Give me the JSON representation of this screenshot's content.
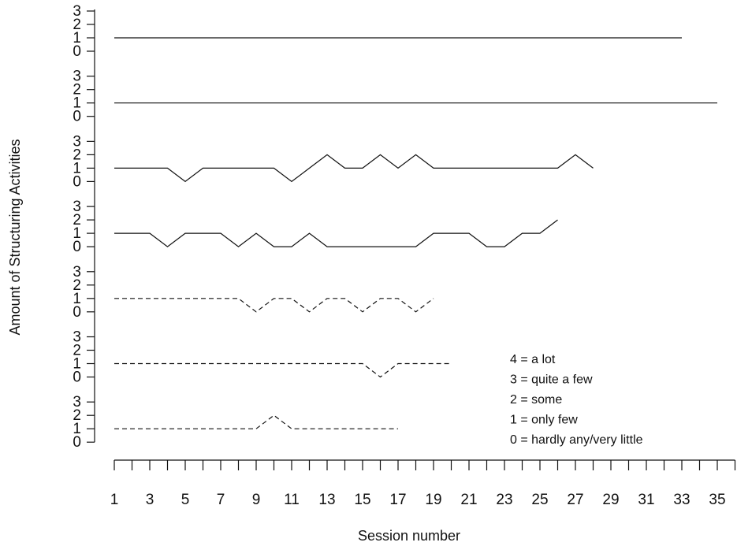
{
  "chart_data": {
    "type": "line",
    "xlabel": "Session number",
    "ylabel": "Amount of Structuring Activities",
    "x_tick_labels": [
      "1",
      "3",
      "5",
      "7",
      "9",
      "11",
      "13",
      "15",
      "17",
      "19",
      "21",
      "23",
      "25",
      "27",
      "29",
      "31",
      "33",
      "35"
    ],
    "x_range": [
      1,
      36
    ],
    "y_tick_labels": [
      "3",
      "2",
      "1",
      "0"
    ],
    "panel_y_range": [
      0,
      3
    ],
    "series": [
      {
        "line_style": "solid",
        "x": [
          1,
          2,
          3,
          4,
          5,
          6,
          7,
          8,
          9,
          10,
          11,
          12,
          13,
          14,
          15,
          16,
          17,
          18,
          19,
          20,
          21,
          22,
          23,
          24,
          25,
          26,
          27,
          28,
          29,
          30,
          31,
          32,
          33
        ],
        "values": [
          1,
          1,
          1,
          1,
          1,
          1,
          1,
          1,
          1,
          1,
          1,
          1,
          1,
          1,
          1,
          1,
          1,
          1,
          1,
          1,
          1,
          1,
          1,
          1,
          1,
          1,
          1,
          1,
          1,
          1,
          1,
          1,
          1
        ]
      },
      {
        "line_style": "solid",
        "x": [
          1,
          2,
          3,
          4,
          5,
          6,
          7,
          8,
          9,
          10,
          11,
          12,
          13,
          14,
          15,
          16,
          17,
          18,
          19,
          20,
          21,
          22,
          23,
          24,
          25,
          26,
          27,
          28,
          29,
          30,
          31,
          32,
          33,
          34,
          35
        ],
        "values": [
          1,
          1,
          1,
          1,
          1,
          1,
          1,
          1,
          1,
          1,
          1,
          1,
          1,
          1,
          1,
          1,
          1,
          1,
          1,
          1,
          1,
          1,
          1,
          1,
          1,
          1,
          1,
          1,
          1,
          1,
          1,
          1,
          1,
          1,
          1
        ]
      },
      {
        "line_style": "solid",
        "x": [
          1,
          2,
          3,
          4,
          5,
          6,
          7,
          8,
          9,
          10,
          11,
          12,
          13,
          14,
          15,
          16,
          17,
          18,
          19,
          20,
          21,
          22,
          23,
          24,
          25,
          26,
          27,
          28
        ],
        "values": [
          1,
          1,
          1,
          1,
          0,
          1,
          1,
          1,
          1,
          1,
          0,
          1,
          2,
          1,
          1,
          2,
          1,
          2,
          1,
          1,
          1,
          1,
          1,
          1,
          1,
          1,
          2,
          1
        ]
      },
      {
        "line_style": "solid",
        "x": [
          1,
          2,
          3,
          4,
          5,
          6,
          7,
          8,
          9,
          10,
          11,
          12,
          13,
          14,
          15,
          16,
          17,
          18,
          19,
          20,
          21,
          22,
          23,
          24,
          25,
          26
        ],
        "values": [
          1,
          1,
          1,
          0,
          1,
          1,
          1,
          0,
          1,
          0,
          0,
          1,
          0,
          0,
          0,
          0,
          0,
          0,
          1,
          1,
          1,
          0,
          0,
          1,
          1,
          2
        ]
      },
      {
        "line_style": "dashed",
        "x": [
          1,
          2,
          3,
          4,
          5,
          6,
          7,
          8,
          9,
          10,
          11,
          12,
          13,
          14,
          15,
          16,
          17,
          18,
          19
        ],
        "values": [
          1,
          1,
          1,
          1,
          1,
          1,
          1,
          1,
          0,
          1,
          1,
          0,
          1,
          1,
          0,
          1,
          1,
          0,
          1
        ]
      },
      {
        "line_style": "dashed",
        "x": [
          1,
          2,
          3,
          4,
          5,
          6,
          7,
          8,
          9,
          10,
          11,
          12,
          13,
          14,
          15,
          16,
          17,
          18,
          19,
          20
        ],
        "values": [
          1,
          1,
          1,
          1,
          1,
          1,
          1,
          1,
          1,
          1,
          1,
          1,
          1,
          1,
          1,
          0,
          1,
          1,
          1,
          1
        ]
      },
      {
        "line_style": "dashed",
        "x": [
          1,
          2,
          3,
          4,
          5,
          6,
          7,
          8,
          9,
          10,
          11,
          12,
          13,
          14,
          15,
          16,
          17
        ],
        "values": [
          1,
          1,
          1,
          1,
          1,
          1,
          1,
          1,
          1,
          2,
          1,
          1,
          1,
          1,
          1,
          1,
          1
        ]
      }
    ],
    "legend": {
      "placement": "bottom-right",
      "entries": [
        "4 = a lot",
        "3 = quite a few",
        "2 = some",
        "1 = only few",
        "0 = hardly any/very little"
      ]
    }
  }
}
